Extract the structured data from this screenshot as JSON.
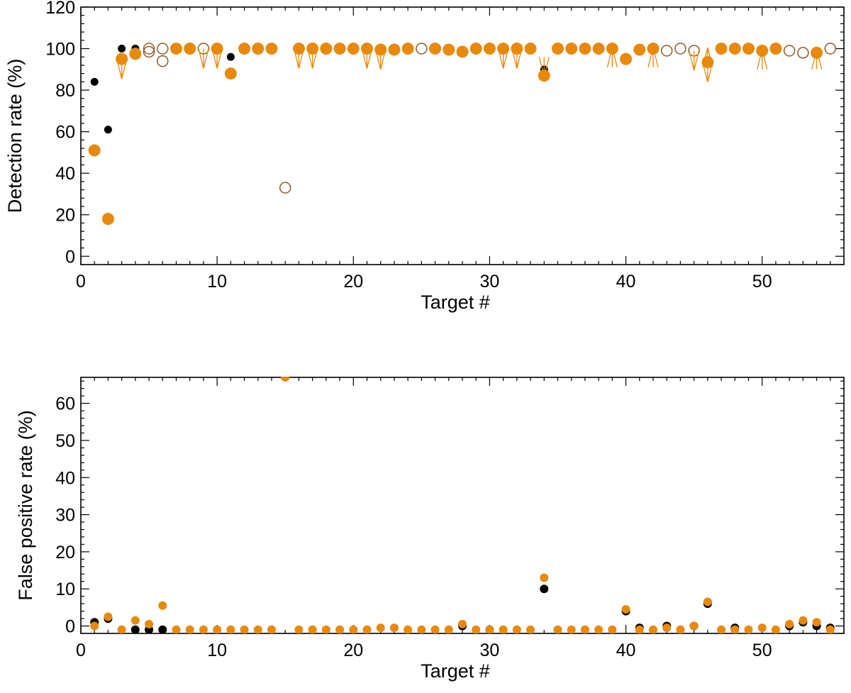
{
  "colors": {
    "black": "#000000",
    "orange": "#E8890C",
    "brown": "#8B5A2B"
  },
  "chart_data": [
    {
      "type": "scatter",
      "xlabel": "Target #",
      "ylabel": "Detection rate (%)",
      "xlim": [
        0,
        56
      ],
      "ylim": [
        -4,
        120
      ],
      "xticks": [
        0,
        10,
        20,
        30,
        40,
        50
      ],
      "yticks": [
        0,
        20,
        40,
        60,
        80,
        100,
        120
      ],
      "grid": false,
      "series": [
        {
          "marker": "small-filled-black",
          "points": [
            [
              1,
              84
            ],
            [
              2,
              61
            ],
            [
              3,
              100
            ],
            [
              4,
              100
            ],
            [
              11,
              96
            ],
            [
              34,
              90
            ]
          ]
        },
        {
          "marker": "filled-orange",
          "points": [
            [
              1,
              51
            ],
            [
              2,
              18
            ],
            [
              3,
              95
            ],
            [
              4,
              97.5
            ],
            [
              7,
              100
            ],
            [
              8,
              100
            ],
            [
              10,
              100
            ],
            [
              11,
              88
            ],
            [
              12,
              100
            ],
            [
              13,
              100
            ],
            [
              14,
              100
            ],
            [
              16,
              100
            ],
            [
              17,
              100
            ],
            [
              18,
              100
            ],
            [
              19,
              100
            ],
            [
              20,
              100
            ],
            [
              21,
              100
            ],
            [
              22,
              99.5
            ],
            [
              23,
              99.5
            ],
            [
              24,
              100
            ],
            [
              26,
              100
            ],
            [
              27,
              99.5
            ],
            [
              28,
              98.5
            ],
            [
              29,
              100
            ],
            [
              30,
              100
            ],
            [
              31,
              100
            ],
            [
              32,
              100
            ],
            [
              33,
              100
            ],
            [
              34,
              87
            ],
            [
              35,
              100
            ],
            [
              36,
              100
            ],
            [
              37,
              100
            ],
            [
              38,
              100
            ],
            [
              39,
              100
            ],
            [
              40,
              95
            ],
            [
              41,
              99.5
            ],
            [
              42,
              100
            ],
            [
              46,
              93.5
            ],
            [
              47,
              100
            ],
            [
              48,
              100
            ],
            [
              49,
              100
            ],
            [
              50,
              99
            ],
            [
              51,
              100
            ],
            [
              54,
              98
            ]
          ]
        },
        {
          "marker": "open-brown",
          "points": [
            [
              5,
              100
            ],
            [
              5,
              98.5
            ],
            [
              6,
              100
            ],
            [
              6,
              94
            ],
            [
              9,
              100
            ],
            [
              15,
              33
            ],
            [
              25,
              100
            ],
            [
              43,
              99
            ],
            [
              44,
              100
            ],
            [
              45,
              99
            ],
            [
              52,
              99
            ],
            [
              53,
              98
            ],
            [
              55,
              100
            ]
          ]
        },
        {
          "marker": "arrow-down-orange",
          "points": [
            [
              3,
              95
            ],
            [
              9,
              100
            ],
            [
              10,
              100
            ],
            [
              16,
              100
            ],
            [
              17,
              100
            ],
            [
              21,
              100
            ],
            [
              22,
              99.5
            ],
            [
              31,
              100
            ],
            [
              32,
              100
            ],
            [
              34,
              96
            ],
            [
              45,
              99
            ],
            [
              46,
              93.5
            ]
          ]
        },
        {
          "marker": "arrow-up-orange",
          "points": [
            [
              39,
              91
            ],
            [
              42,
              91
            ],
            [
              46,
              91
            ],
            [
              50,
              90
            ],
            [
              54,
              90
            ]
          ]
        }
      ]
    },
    {
      "type": "scatter",
      "xlabel": "Target #",
      "ylabel": "False positive rate (%)",
      "xlim": [
        0,
        56
      ],
      "ylim": [
        -2,
        67
      ],
      "xticks": [
        0,
        10,
        20,
        30,
        40,
        50
      ],
      "yticks": [
        0,
        10,
        20,
        30,
        40,
        50,
        60
      ],
      "grid": false,
      "series": [
        {
          "marker": "filled-black",
          "points": [
            [
              1,
              1
            ],
            [
              2,
              2
            ],
            [
              4,
              -1
            ],
            [
              5,
              -1
            ],
            [
              6,
              -1
            ],
            [
              28,
              0
            ],
            [
              30,
              -1
            ],
            [
              34,
              10
            ],
            [
              40,
              4
            ],
            [
              41,
              -0.5
            ],
            [
              43,
              0
            ],
            [
              45,
              0
            ],
            [
              46,
              6
            ],
            [
              48,
              -0.5
            ],
            [
              52,
              0
            ],
            [
              53,
              1
            ],
            [
              54,
              0
            ],
            [
              55,
              -0.5
            ]
          ]
        },
        {
          "marker": "filled-orange",
          "points": [
            [
              1,
              0
            ],
            [
              2,
              2.5
            ],
            [
              3,
              -1
            ],
            [
              4,
              1.5
            ],
            [
              5,
              0.5
            ],
            [
              6,
              5.5
            ],
            [
              7,
              -1
            ],
            [
              8,
              -1
            ],
            [
              9,
              -1
            ],
            [
              10,
              -1
            ],
            [
              11,
              -1
            ],
            [
              12,
              -1
            ],
            [
              13,
              -1
            ],
            [
              14,
              -1
            ],
            [
              15,
              67
            ],
            [
              16,
              -1
            ],
            [
              17,
              -1
            ],
            [
              18,
              -1
            ],
            [
              19,
              -1
            ],
            [
              20,
              -1
            ],
            [
              21,
              -1
            ],
            [
              22,
              -0.5
            ],
            [
              23,
              -0.5
            ],
            [
              24,
              -1
            ],
            [
              25,
              -1
            ],
            [
              26,
              -1
            ],
            [
              27,
              -1
            ],
            [
              28,
              0.5
            ],
            [
              29,
              -1
            ],
            [
              30,
              -1
            ],
            [
              31,
              -1
            ],
            [
              32,
              -1
            ],
            [
              33,
              -1
            ],
            [
              34,
              13
            ],
            [
              35,
              -1
            ],
            [
              36,
              -1
            ],
            [
              37,
              -1
            ],
            [
              38,
              -1
            ],
            [
              39,
              -1
            ],
            [
              40,
              4.5
            ],
            [
              41,
              -1
            ],
            [
              42,
              -1
            ],
            [
              43,
              -0.5
            ],
            [
              44,
              -1
            ],
            [
              45,
              0
            ],
            [
              46,
              6.5
            ],
            [
              47,
              -1
            ],
            [
              48,
              -1
            ],
            [
              49,
              -1
            ],
            [
              50,
              -0.5
            ],
            [
              51,
              -1
            ],
            [
              52,
              0.5
            ],
            [
              53,
              1.5
            ],
            [
              54,
              1
            ],
            [
              55,
              -1
            ]
          ]
        }
      ]
    }
  ]
}
